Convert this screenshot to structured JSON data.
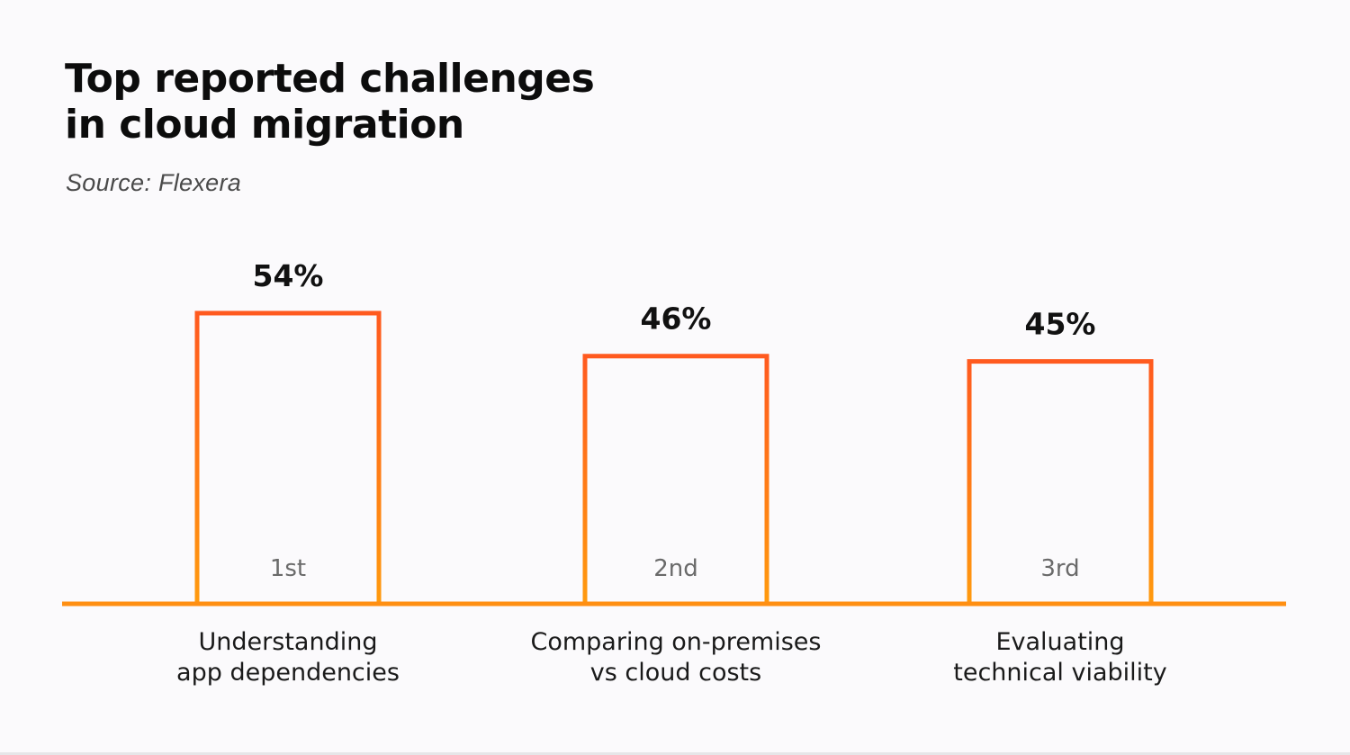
{
  "title": {
    "line1": "Top reported challenges",
    "line2": "in cloud migration"
  },
  "source": "Source: Flexera",
  "colors": {
    "bar_top": "#ff5a1f",
    "bar_bottom": "#ff9a0e",
    "baseline": "#ff8f12",
    "background": "#fbfafc"
  },
  "chart_data": {
    "type": "bar",
    "title": "Top reported challenges in cloud migration",
    "source": "Source: Flexera",
    "categories": [
      [
        "Understanding",
        "app dependencies"
      ],
      [
        "Comparing on-premises",
        "vs cloud costs"
      ],
      [
        "Evaluating",
        "technical viability"
      ]
    ],
    "values": [
      54,
      46,
      45
    ],
    "value_labels": [
      "54%",
      "46%",
      "45%"
    ],
    "ranks": [
      "1st",
      "2nd",
      "3rd"
    ],
    "unit": "%",
    "ylim": [
      0,
      100
    ],
    "grid": false,
    "legend": "none"
  }
}
